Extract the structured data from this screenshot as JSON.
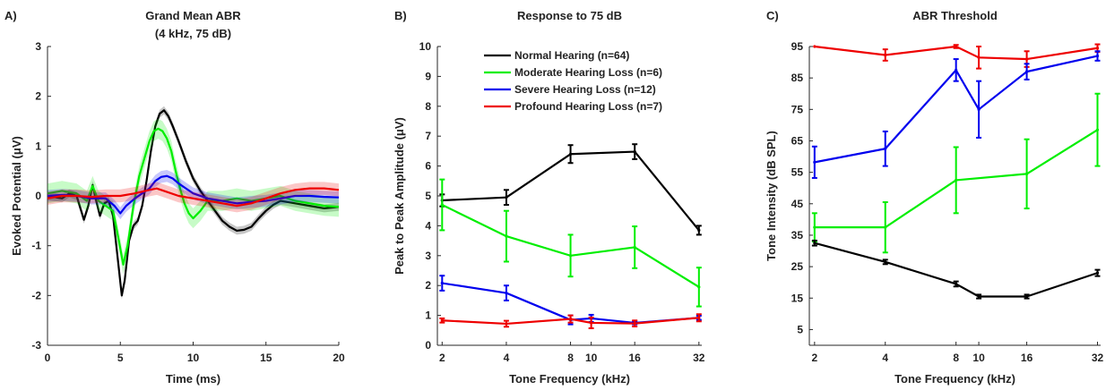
{
  "figure": {
    "panels": [
      "A)",
      "B)",
      "C)"
    ]
  },
  "colors": {
    "normal": "#000000",
    "moderate": "#00ee00",
    "severe": "#0000ee",
    "profound": "#ee0000",
    "axis": "#262626"
  },
  "chart_data": [
    {
      "type": "line",
      "panel_label": "A)",
      "title": "Grand Mean ABR",
      "subtitle": "(4 kHz, 75 dB)",
      "xlabel": "Time (ms)",
      "ylabel": "Evoked Potential (μV)",
      "xlim": [
        0,
        20
      ],
      "ylim": [
        -3,
        3
      ],
      "xticks": [
        0,
        5,
        10,
        15,
        20
      ],
      "yticks": [
        -3,
        -2,
        -1,
        0,
        1,
        2,
        3
      ],
      "grid": false,
      "legend": "none",
      "series": [
        {
          "key": "normal",
          "band": 0.08,
          "x": [
            0,
            1,
            1.5,
            2,
            2.5,
            2.8,
            3.1,
            3.3,
            3.6,
            3.9,
            4.2,
            4.5,
            4.8,
            5.1,
            5.3,
            5.6,
            5.9,
            6.2,
            6.5,
            6.8,
            7.1,
            7.4,
            7.7,
            8.0,
            8.3,
            8.6,
            9.0,
            9.5,
            10.0,
            10.5,
            11.0,
            11.5,
            12.0,
            12.5,
            13.0,
            13.5,
            14.0,
            14.5,
            15.0,
            15.5,
            16.0,
            17.0,
            18.0,
            19.0,
            20.0
          ],
          "y": [
            0,
            -0.05,
            0.05,
            0.0,
            -0.48,
            -0.2,
            0.22,
            -0.05,
            -0.4,
            -0.15,
            -0.1,
            -0.4,
            -1.2,
            -2.0,
            -1.7,
            -0.9,
            -0.6,
            -0.5,
            -0.2,
            0.3,
            0.9,
            1.4,
            1.65,
            1.72,
            1.6,
            1.4,
            1.1,
            0.7,
            0.35,
            0.1,
            -0.1,
            -0.3,
            -0.5,
            -0.62,
            -0.7,
            -0.68,
            -0.62,
            -0.45,
            -0.3,
            -0.18,
            -0.1,
            -0.15,
            -0.2,
            -0.25,
            -0.22
          ]
        },
        {
          "key": "moderate",
          "band": 0.2,
          "x": [
            0,
            1,
            2,
            2.7,
            3.1,
            3.5,
            4.0,
            4.5,
            4.9,
            5.2,
            5.5,
            5.9,
            6.3,
            6.7,
            7.0,
            7.3,
            7.6,
            7.9,
            8.2,
            8.5,
            8.8,
            9.1,
            9.4,
            9.7,
            10.0,
            10.5,
            11.0,
            12.0,
            13.0,
            14.0,
            15.0,
            16.0,
            17.0,
            18.0,
            19.0,
            20.0
          ],
          "y": [
            0.05,
            0.1,
            0.05,
            -0.1,
            0.2,
            -0.1,
            -0.2,
            -0.3,
            -0.9,
            -1.38,
            -1.0,
            -0.2,
            0.4,
            0.8,
            1.1,
            1.3,
            1.35,
            1.3,
            1.15,
            0.9,
            0.5,
            0.15,
            -0.15,
            -0.35,
            -0.45,
            -0.3,
            -0.1,
            -0.1,
            -0.05,
            -0.1,
            -0.05,
            0.0,
            -0.1,
            -0.15,
            -0.2,
            -0.22
          ]
        },
        {
          "key": "severe",
          "band": 0.12,
          "x": [
            0,
            1,
            2,
            3,
            4,
            4.6,
            5.0,
            5.4,
            6.0,
            6.5,
            7.0,
            7.4,
            7.8,
            8.2,
            8.6,
            9.0,
            9.5,
            10.0,
            11.0,
            12.0,
            13.0,
            14.0,
            15.0,
            16.0,
            17.0,
            18.0,
            19.0,
            20.0
          ],
          "y": [
            0,
            0.02,
            0.0,
            -0.05,
            -0.05,
            -0.2,
            -0.35,
            -0.2,
            -0.05,
            0.05,
            0.15,
            0.3,
            0.38,
            0.4,
            0.35,
            0.25,
            0.15,
            0.05,
            -0.05,
            -0.1,
            -0.15,
            -0.12,
            -0.1,
            -0.05,
            0.0,
            0.0,
            -0.02,
            -0.03
          ]
        },
        {
          "key": "profound",
          "band": 0.13,
          "x": [
            0,
            1,
            2,
            3,
            4,
            5,
            6,
            7,
            7.5,
            8,
            9,
            10,
            11,
            12,
            13,
            14,
            15,
            16,
            17,
            18,
            19,
            20
          ],
          "y": [
            -0.05,
            0.0,
            0.0,
            -0.02,
            0.0,
            0.0,
            0.05,
            0.12,
            0.15,
            0.1,
            0.0,
            -0.05,
            -0.1,
            -0.15,
            -0.2,
            -0.15,
            -0.05,
            0.05,
            0.12,
            0.15,
            0.15,
            0.12
          ]
        }
      ]
    },
    {
      "type": "line",
      "panel_label": "B)",
      "title": "Response to 75 dB",
      "xlabel": "Tone Frequency (kHz)",
      "ylabel": "Peak to Peak Amplitude (μV)",
      "xscale": "log",
      "xlim": [
        1.9,
        33
      ],
      "ylim": [
        0,
        10
      ],
      "xticks": [
        2,
        4,
        8,
        10,
        16,
        32
      ],
      "yticks": [
        0,
        1,
        2,
        3,
        4,
        5,
        6,
        7,
        8,
        9,
        10
      ],
      "grid": false,
      "legend": "top-center",
      "series": [
        {
          "key": "normal",
          "name": "Normal Hearing (n=64)",
          "x": [
            2,
            4,
            8,
            16,
            32
          ],
          "y": [
            4.85,
            4.95,
            6.4,
            6.48,
            3.85
          ],
          "err": [
            0.2,
            0.25,
            0.3,
            0.25,
            0.15
          ]
        },
        {
          "key": "moderate",
          "name": "Moderate Hearing Loss (n=6)",
          "x": [
            2,
            4,
            8,
            16,
            32
          ],
          "y": [
            4.7,
            3.65,
            3.0,
            3.28,
            1.95
          ],
          "err": [
            0.85,
            0.85,
            0.7,
            0.7,
            0.65
          ]
        },
        {
          "key": "severe",
          "name": "Severe Hearing Loss (n=12)",
          "x": [
            2,
            4,
            8,
            10,
            16,
            32
          ],
          "y": [
            2.08,
            1.75,
            0.85,
            0.9,
            0.75,
            0.92
          ],
          "err": [
            0.25,
            0.25,
            0.15,
            0.12,
            0.05,
            0.07
          ]
        },
        {
          "key": "profound",
          "name": "Profound Hearing Loss (n=7)",
          "x": [
            2,
            4,
            8,
            10,
            16,
            32
          ],
          "y": [
            0.83,
            0.72,
            0.88,
            0.75,
            0.73,
            0.92
          ],
          "err": [
            0.07,
            0.1,
            0.12,
            0.18,
            0.1,
            0.12
          ]
        }
      ]
    },
    {
      "type": "line",
      "panel_label": "C)",
      "title": "ABR Threshold",
      "xlabel": "Tone Frequency (kHz)",
      "ylabel": "Tone Intensity (dB SPL)",
      "xscale": "log",
      "xlim": [
        1.9,
        33
      ],
      "ylim": [
        0,
        95
      ],
      "xticks": [
        2,
        4,
        8,
        10,
        16,
        32
      ],
      "yticks": [
        5,
        15,
        25,
        35,
        45,
        55,
        65,
        75,
        85,
        95
      ],
      "grid": false,
      "legend": "none",
      "series": [
        {
          "key": "profound",
          "x": [
            2,
            4,
            8,
            10,
            16,
            32
          ],
          "y": [
            95,
            92.3,
            95,
            91.5,
            91,
            94.5
          ],
          "err": [
            0,
            1.8,
            0.5,
            3.5,
            2.5,
            1.2
          ]
        },
        {
          "key": "severe",
          "x": [
            2,
            4,
            8,
            10,
            16,
            32
          ],
          "y": [
            58.2,
            62.5,
            87.5,
            75,
            87,
            92
          ],
          "err": [
            5,
            5.5,
            3.5,
            9,
            2.5,
            1.5
          ]
        },
        {
          "key": "moderate",
          "x": [
            2,
            4,
            8,
            16,
            32
          ],
          "y": [
            37.5,
            37.5,
            52.5,
            54.5,
            68.5
          ],
          "err": [
            4.5,
            8,
            10.5,
            11,
            11.5
          ]
        },
        {
          "key": "normal",
          "x": [
            2,
            4,
            8,
            10,
            16,
            32
          ],
          "y": [
            32.5,
            26.5,
            19.5,
            15.5,
            15.5,
            23
          ],
          "err": [
            0.8,
            0.7,
            0.8,
            0.6,
            0.6,
            1.0
          ]
        }
      ]
    }
  ]
}
